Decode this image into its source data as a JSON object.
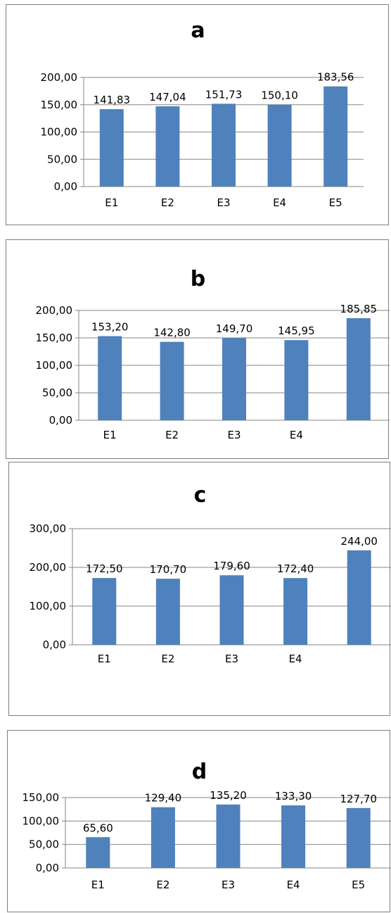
{
  "chart_data": [
    {
      "type": "bar",
      "title": "a",
      "categories": [
        "E1",
        "E2",
        "E3",
        "E4",
        "E5"
      ],
      "values": [
        141.83,
        147.04,
        151.73,
        150.1,
        183.56
      ],
      "value_labels": [
        "141,83",
        "147,04",
        "151,73",
        "150,10",
        "183,56"
      ],
      "ylim": [
        0,
        200
      ],
      "yticks": [
        0,
        50,
        100,
        150,
        200
      ],
      "ytick_labels": [
        "0,00",
        "50,00",
        "100,00",
        "150,00",
        "200,00"
      ],
      "grid": true,
      "legend": "none",
      "bar_color": "#4f81bd"
    },
    {
      "type": "bar",
      "title": "b",
      "categories": [
        "E1",
        "E2",
        "E3",
        "E4",
        ""
      ],
      "values": [
        153.2,
        142.8,
        149.7,
        145.95,
        185.85
      ],
      "value_labels": [
        "153,20",
        "142,80",
        "149,70",
        "145,95",
        "185,85"
      ],
      "ylim": [
        0,
        200
      ],
      "yticks": [
        0,
        50,
        100,
        150,
        200
      ],
      "ytick_labels": [
        "0,00",
        "50,00",
        "100,00",
        "150,00",
        "200,00"
      ],
      "grid": true,
      "legend": "none",
      "bar_color": "#4f81bd"
    },
    {
      "type": "bar",
      "title": "c",
      "categories": [
        "E1",
        "E2",
        "E3",
        "E4",
        ""
      ],
      "values": [
        172.5,
        170.7,
        179.6,
        172.4,
        244.0
      ],
      "value_labels": [
        "172,50",
        "170,70",
        "179,60",
        "172,40",
        "244,00"
      ],
      "ylim": [
        0,
        300
      ],
      "yticks": [
        0,
        100,
        200,
        300
      ],
      "ytick_labels": [
        "0,00",
        "100,00",
        "200,00",
        "300,00"
      ],
      "grid": true,
      "legend": "none",
      "bar_color": "#4f81bd"
    },
    {
      "type": "bar",
      "title": "d",
      "categories": [
        "E1",
        "E2",
        "E3",
        "E4",
        "E5"
      ],
      "values": [
        65.6,
        129.4,
        135.2,
        133.3,
        127.7
      ],
      "value_labels": [
        "65,60",
        "129,40",
        "135,20",
        "133,30",
        "127,70"
      ],
      "ylim": [
        0,
        150
      ],
      "yticks": [
        0,
        50,
        100,
        150
      ],
      "ytick_labels": [
        "0,00",
        "50,00",
        "100,00",
        "150,00"
      ],
      "grid": true,
      "legend": "none",
      "bar_color": "#4f81bd"
    }
  ]
}
